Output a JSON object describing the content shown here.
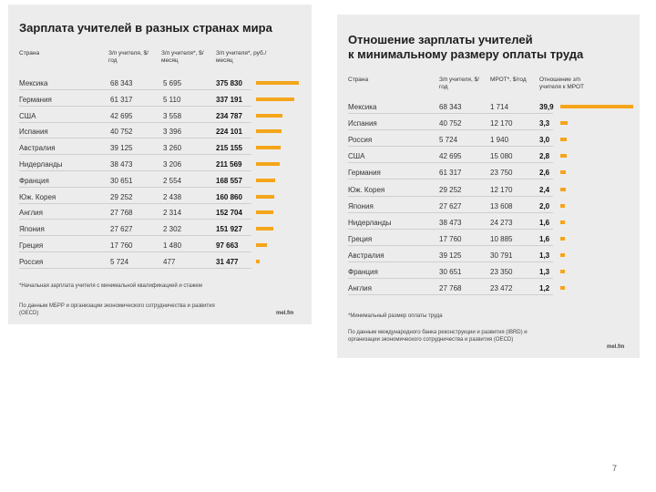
{
  "chart_data": [
    {
      "type": "table",
      "title": "Зарплата учителей в разных странах мира",
      "columns": [
        "Страна",
        "З/п учителя, $/год",
        "З/п учителя*, $/месяц",
        "З/п учителя*, руб./месяц"
      ],
      "rows": [
        {
          "country": "Мексика",
          "year": "68 343",
          "month": "5 695",
          "rub": "375 830",
          "value": 375830
        },
        {
          "country": "Германия",
          "year": "61 317",
          "month": "5 110",
          "rub": "337 191",
          "value": 337191
        },
        {
          "country": "США",
          "year": "42 695",
          "month": "3 558",
          "rub": "234 787",
          "value": 234787
        },
        {
          "country": "Испания",
          "year": "40 752",
          "month": "3 396",
          "rub": "224 101",
          "value": 224101
        },
        {
          "country": "Австралия",
          "year": "39 125",
          "month": "3 260",
          "rub": "215 155",
          "value": 215155
        },
        {
          "country": "Нидерланды",
          "year": "38 473",
          "month": "3 206",
          "rub": "211 569",
          "value": 211569
        },
        {
          "country": "Франция",
          "year": "30 651",
          "month": "2 554",
          "rub": "168 557",
          "value": 168557
        },
        {
          "country": "Юж. Корея",
          "year": "29 252",
          "month": "2 438",
          "rub": "160 860",
          "value": 160860
        },
        {
          "country": "Англия",
          "year": "27 768",
          "month": "2 314",
          "rub": "152 704",
          "value": 152704
        },
        {
          "country": "Япония",
          "year": "27 627",
          "month": "2 302",
          "rub": "151 927",
          "value": 151927
        },
        {
          "country": "Греция",
          "year": "17 760",
          "month": "1 480",
          "rub": "97 663",
          "value": 97663
        },
        {
          "country": "Россия",
          "year": "5 724",
          "month": "477",
          "rub": "31 477",
          "value": 31477
        }
      ],
      "max_value": 375830,
      "footnote": "*Начальная зарплата учителя с минимальной квалификацией и стажем",
      "source": "По данным МБРР и организации экономического сотрудничества и развития (OECD)",
      "brand": "mel.fm"
    },
    {
      "type": "table",
      "title_line1": "Отношение зарплаты учителей",
      "title_line2": "к минимальному размеру оплаты труда",
      "columns": [
        "Страна",
        "З/п учителя, $/год",
        "МРОТ*, $/год",
        "Отношение з/п учителя к МРОТ"
      ],
      "rows": [
        {
          "country": "Мексика",
          "salary": "68 343",
          "mrot": "1 714",
          "ratio": "39,9",
          "value": 39.9
        },
        {
          "country": "Испания",
          "salary": "40 752",
          "mrot": "12 170",
          "ratio": "3,3",
          "value": 3.3
        },
        {
          "country": "Россия",
          "salary": "5 724",
          "mrot": "1 940",
          "ratio": "3,0",
          "value": 3.0
        },
        {
          "country": "США",
          "salary": "42 695",
          "mrot": "15 080",
          "ratio": "2,8",
          "value": 2.8
        },
        {
          "country": "Германия",
          "salary": "61 317",
          "mrot": "23 750",
          "ratio": "2,6",
          "value": 2.6
        },
        {
          "country": "Юж. Корея",
          "salary": "29 252",
          "mrot": "12 170",
          "ratio": "2,4",
          "value": 2.4
        },
        {
          "country": "Япония",
          "salary": "27 627",
          "mrot": "13 608",
          "ratio": "2,0",
          "value": 2.0
        },
        {
          "country": "Нидерланды",
          "salary": "38 473",
          "mrot": "24 273",
          "ratio": "1,6",
          "value": 1.6
        },
        {
          "country": "Греция",
          "salary": "17 760",
          "mrot": "10 885",
          "ratio": "1,6",
          "value": 1.6
        },
        {
          "country": "Австралия",
          "salary": "39 125",
          "mrot": "30 791",
          "ratio": "1,3",
          "value": 1.3
        },
        {
          "country": "Франция",
          "salary": "30 651",
          "mrot": "23 350",
          "ratio": "1,3",
          "value": 1.3
        },
        {
          "country": "Англия",
          "salary": "27 768",
          "mrot": "23 472",
          "ratio": "1,2",
          "value": 1.2
        }
      ],
      "max_value": 39.9,
      "footnote": "*Минимальный размер оплаты труда",
      "source": "По данным международного банка реконструкции и развития (IBRD) и организации экономического сотрудничества и развития (OECD)",
      "brand": "mel.fm"
    }
  ],
  "page_number": "7"
}
